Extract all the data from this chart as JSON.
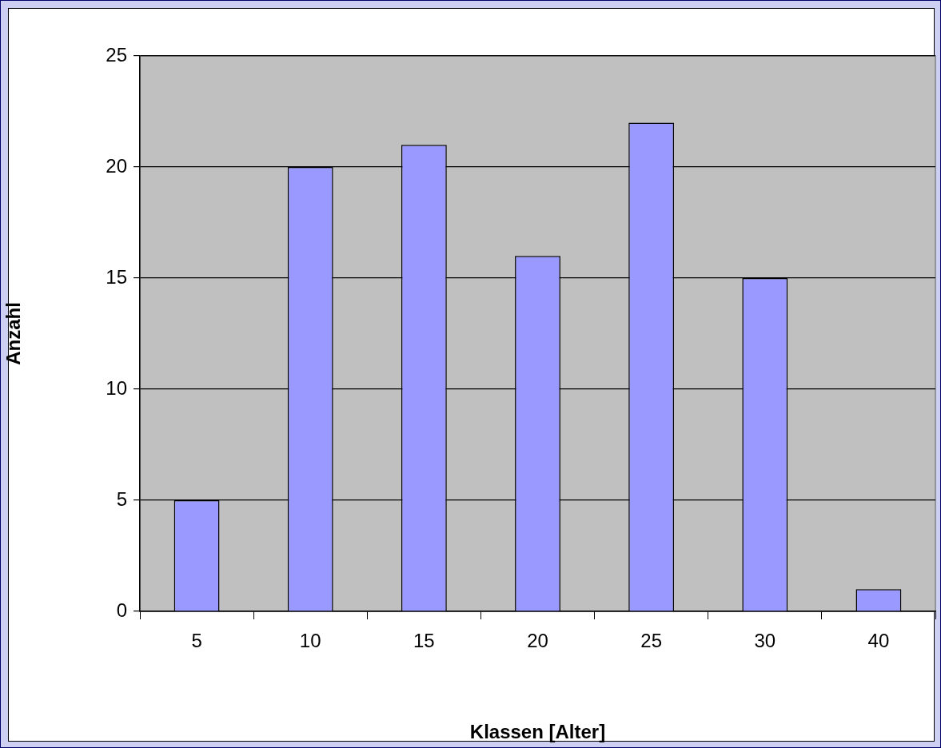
{
  "chart_data": {
    "type": "bar",
    "xlabel": "Klassen [Alter]",
    "ylabel": "Anzahl",
    "categories": [
      "5",
      "10",
      "15",
      "20",
      "25",
      "30",
      "40"
    ],
    "values": [
      5,
      20,
      21,
      16,
      22,
      15,
      1
    ],
    "color": "#9999ff",
    "ylim": [
      0,
      25
    ],
    "yticks": [
      0,
      5,
      10,
      15,
      20,
      25
    ],
    "grid": "y",
    "legend": false
  }
}
